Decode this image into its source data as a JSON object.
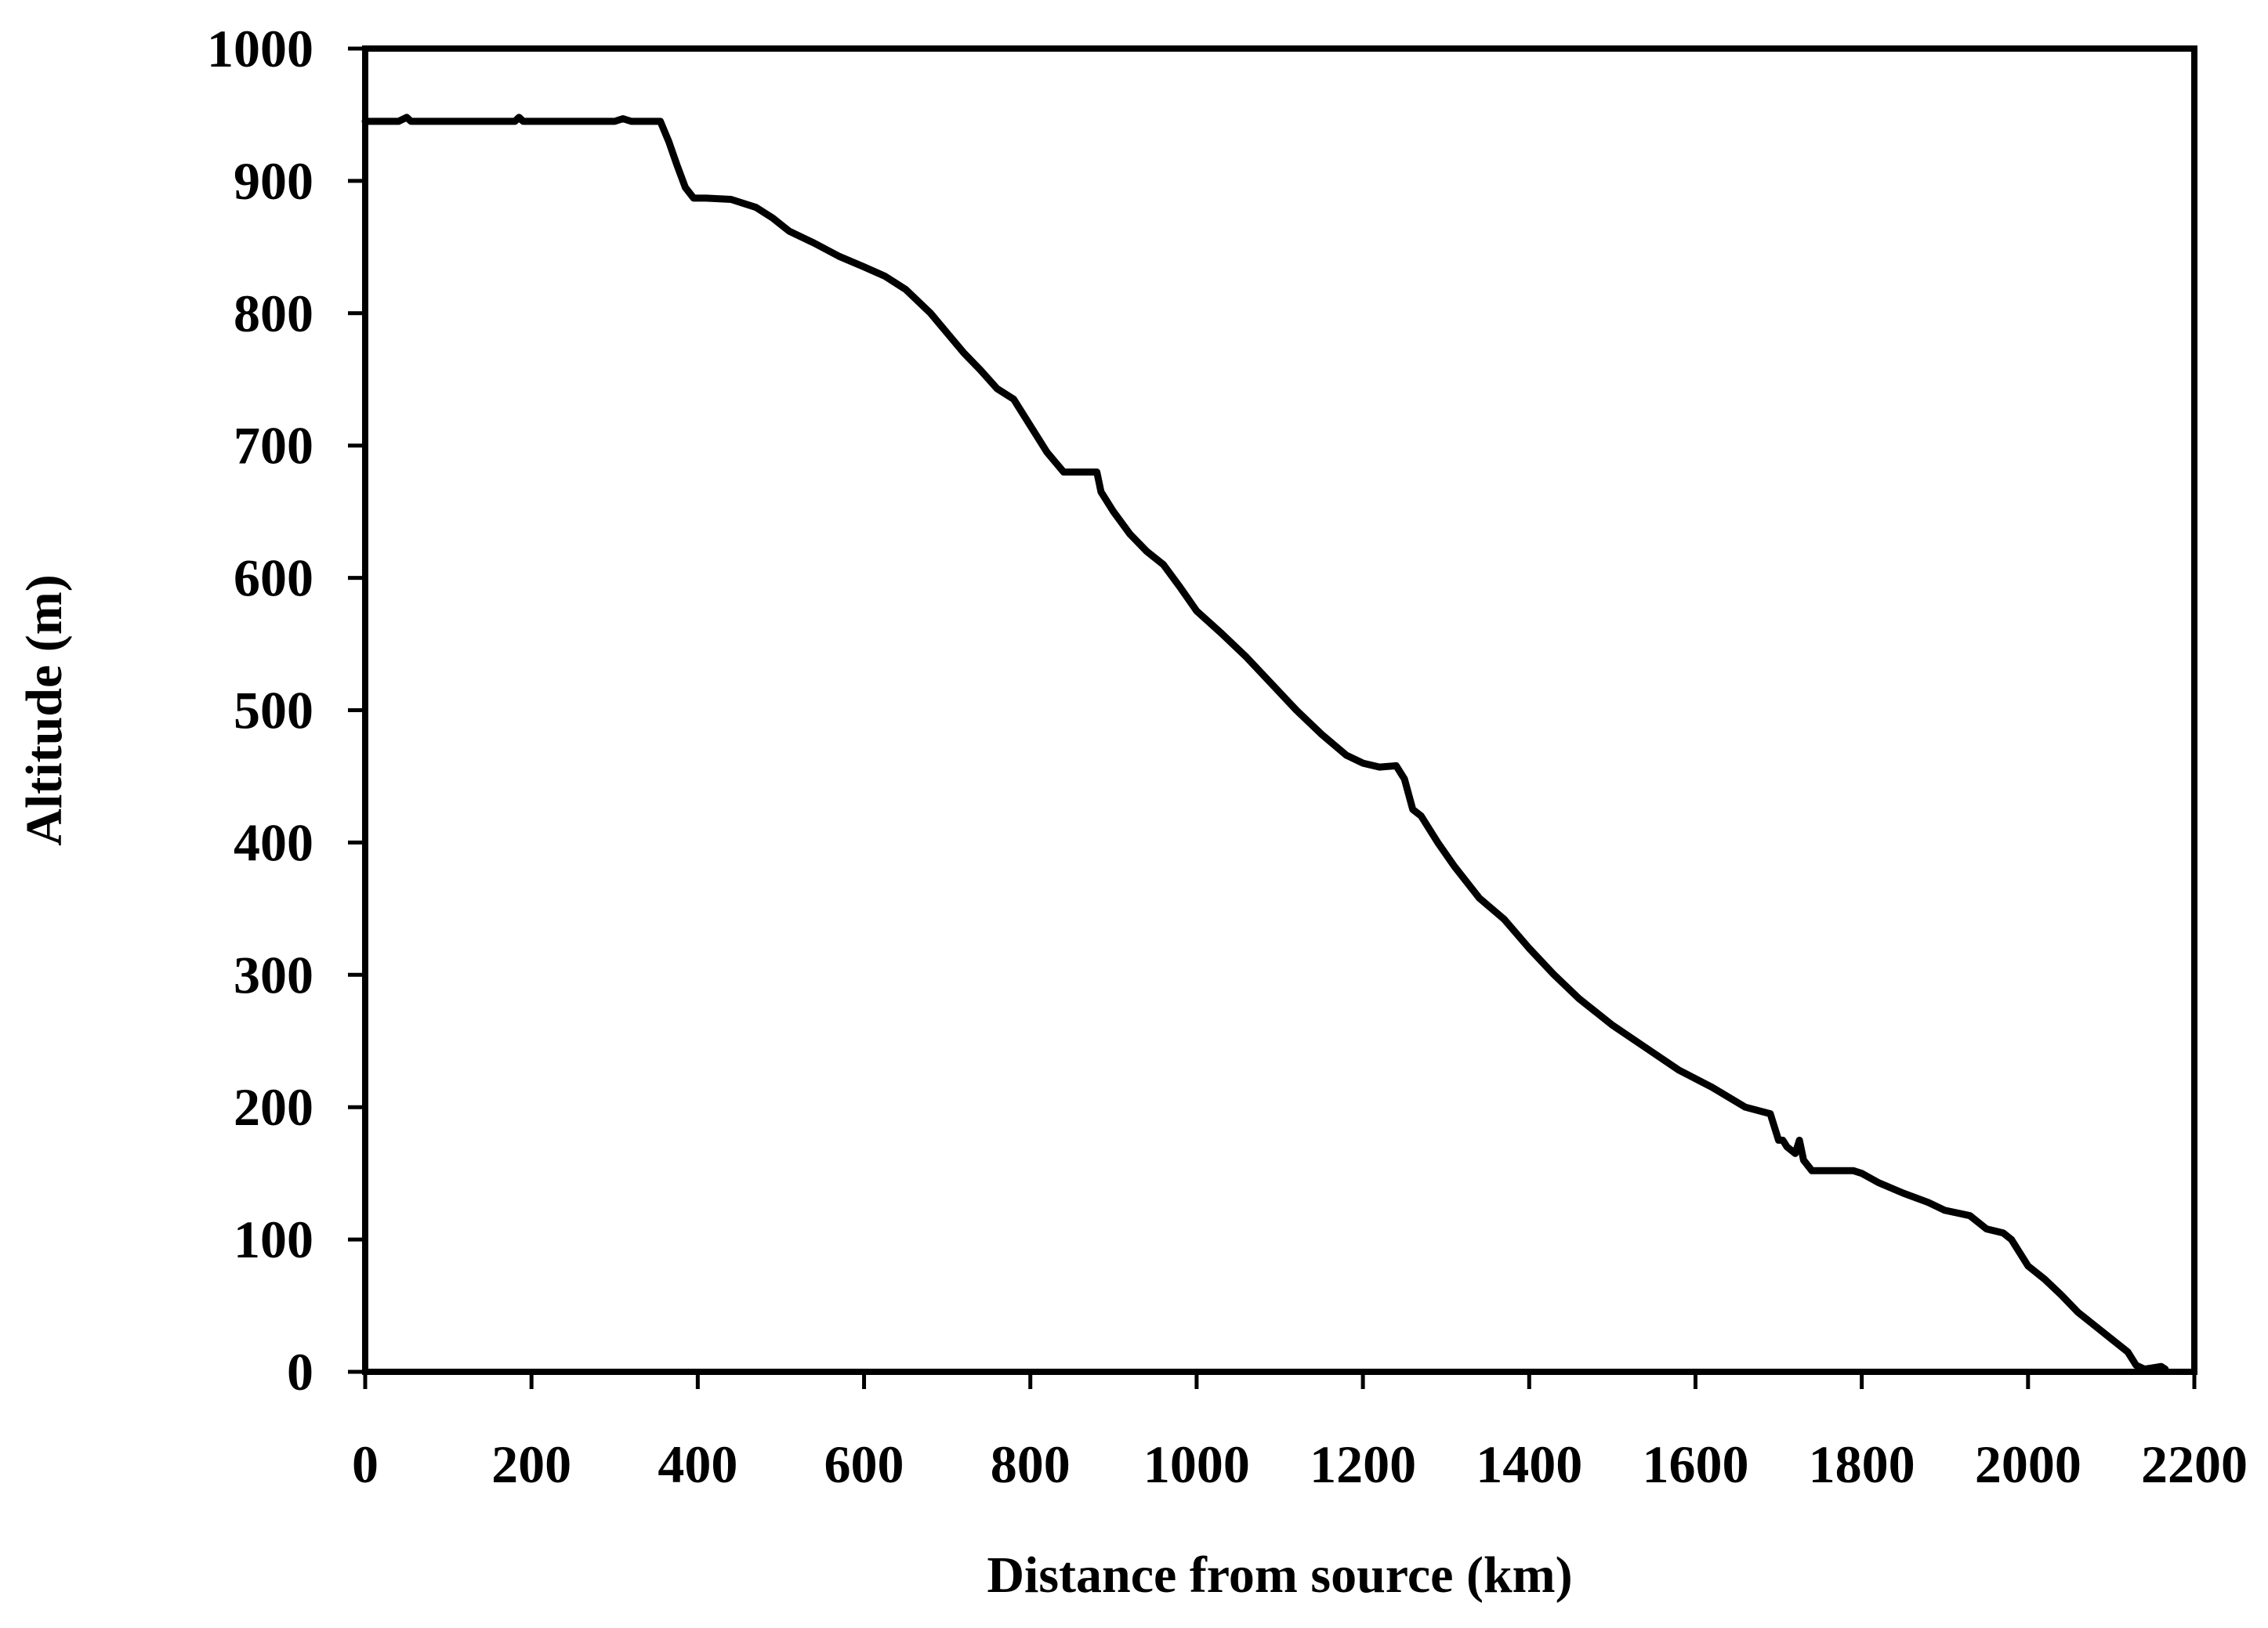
{
  "chart_data": {
    "type": "line",
    "title": "",
    "xlabel": "Distance from source (km)",
    "ylabel": "Altitude (m)",
    "xlim": [
      0,
      2200
    ],
    "ylim": [
      0,
      1000
    ],
    "x_ticks": [
      "0",
      "200",
      "400",
      "600",
      "800",
      "1000",
      "1200",
      "1400",
      "1600",
      "1800",
      "2000",
      "2200"
    ],
    "y_ticks": [
      "0",
      "100",
      "200",
      "300",
      "400",
      "500",
      "600",
      "700",
      "800",
      "900",
      "1000"
    ],
    "grid": false,
    "legend": "none",
    "line_color": "#000000",
    "series": [
      {
        "x": [
          0,
          40,
          50,
          55,
          60,
          100,
          180,
          185,
          190,
          250,
          300,
          310,
          320,
          355,
          365,
          375,
          385,
          395,
          410,
          440,
          470,
          490,
          510,
          540,
          570,
          600,
          625,
          650,
          680,
          700,
          720,
          740,
          760,
          780,
          800,
          820,
          840,
          860,
          880,
          885,
          900,
          920,
          940,
          960,
          980,
          1000,
          1030,
          1060,
          1090,
          1120,
          1150,
          1180,
          1200,
          1220,
          1240,
          1250,
          1260,
          1270,
          1290,
          1310,
          1340,
          1370,
          1400,
          1430,
          1460,
          1500,
          1540,
          1580,
          1620,
          1660,
          1690,
          1700,
          1705,
          1710,
          1720,
          1725,
          1730,
          1740,
          1760,
          1790,
          1800,
          1820,
          1850,
          1880,
          1900,
          1930,
          1950,
          1970,
          1980,
          2000,
          2020,
          2040,
          2060,
          2080,
          2100,
          2120,
          2130,
          2140,
          2150,
          2160,
          2165
        ],
        "y": [
          945,
          945,
          948,
          945,
          945,
          945,
          945,
          948,
          945,
          945,
          945,
          947,
          945,
          945,
          930,
          912,
          895,
          887,
          887,
          886,
          880,
          872,
          862,
          853,
          843,
          835,
          828,
          818,
          800,
          785,
          770,
          757,
          743,
          735,
          715,
          695,
          680,
          680,
          680,
          665,
          650,
          633,
          620,
          610,
          593,
          575,
          558,
          540,
          520,
          500,
          482,
          466,
          460,
          457,
          458,
          448,
          425,
          420,
          400,
          382,
          358,
          342,
          320,
          300,
          282,
          262,
          245,
          228,
          215,
          200,
          195,
          175,
          175,
          170,
          165,
          175,
          160,
          152,
          152,
          152,
          150,
          143,
          135,
          128,
          122,
          118,
          108,
          105,
          100,
          80,
          70,
          58,
          45,
          35,
          25,
          15,
          5,
          2,
          3,
          4,
          2
        ]
      }
    ]
  }
}
